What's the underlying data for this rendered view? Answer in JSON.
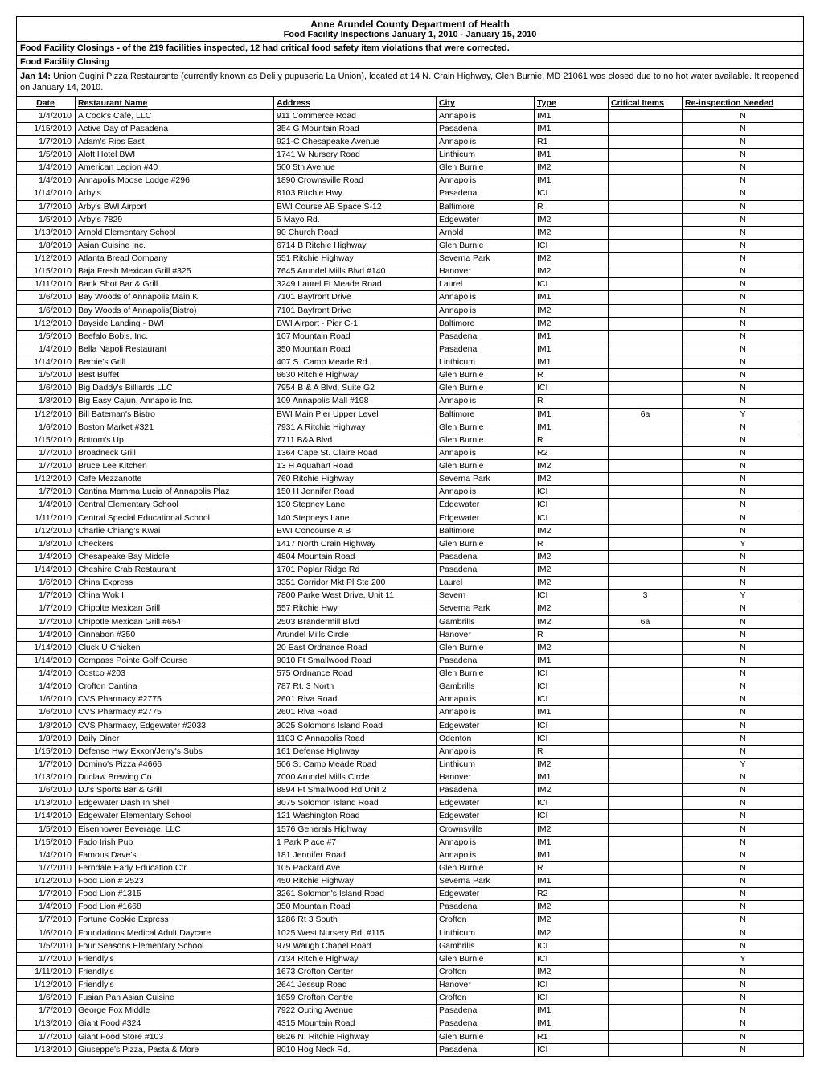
{
  "header": {
    "title": "Anne Arundel County Department of Health",
    "subtitle": "Food Facility Inspections January 1, 2010 - January 15, 2010"
  },
  "subheader": "Food Facility Closings - of the 219 facilities inspected, 12 had critical food safety item violations that were corrected.",
  "closing": {
    "title": "Food Facility Closing",
    "text_prefix": "Jan 14:",
    "text_body": " Union Cugini Pizza Restaurante (currently known as Deli y pupuseria La Union), located at 14 N. Crain Highway, Glen Burnie, MD 21061 was closed due to no hot water available.  It reopened on January 14, 2010."
  },
  "columns": [
    "Date",
    "Restaurant Name",
    "Address",
    "City",
    "Type",
    "Critical Items",
    "Re-inspection Needed"
  ],
  "rows": [
    [
      "1/4/2010",
      "A Cook's Cafe, LLC",
      "911 Commerce Road",
      "Annapolis",
      "IM1",
      "",
      "N"
    ],
    [
      "1/15/2010",
      "Active Day of Pasadena",
      "354 G Mountain Road",
      "Pasadena",
      "IM1",
      "",
      "N"
    ],
    [
      "1/7/2010",
      "Adam's Ribs East",
      "921-C Chesapeake Avenue",
      "Annapolis",
      "R1",
      "",
      "N"
    ],
    [
      "1/5/2010",
      "Aloft Hotel BWI",
      "1741 W Nursery Road",
      "Linthicum",
      "IM1",
      "",
      "N"
    ],
    [
      "1/4/2010",
      "American Legion #40",
      "500 5th Avenue",
      "Glen Burnie",
      "IM2",
      "",
      "N"
    ],
    [
      "1/4/2010",
      "Annapolis Moose Lodge #296",
      "1890 Crownsville Road",
      "Annapolis",
      "IM1",
      "",
      "N"
    ],
    [
      "1/14/2010",
      "Arby's",
      "8103 Ritchie Hwy.",
      "Pasadena",
      "ICI",
      "",
      "N"
    ],
    [
      "1/7/2010",
      "Arby's BWI Airport",
      "BWI  Course AB Space S-12",
      "Baltimore",
      "R",
      "",
      "N"
    ],
    [
      "1/5/2010",
      "Arby's 7829",
      "5 Mayo Rd.",
      "Edgewater",
      "IM2",
      "",
      "N"
    ],
    [
      "1/13/2010",
      "Arnold Elementary School",
      "90 Church Road",
      "Arnold",
      "IM2",
      "",
      "N"
    ],
    [
      "1/8/2010",
      "Asian Cuisine Inc.",
      "6714 B Ritchie Highway",
      "Glen Burnie",
      "ICI",
      "",
      "N"
    ],
    [
      "1/12/2010",
      "Atlanta Bread Company",
      "551 Ritchie Highway",
      "Severna Park",
      "IM2",
      "",
      "N"
    ],
    [
      "1/15/2010",
      "Baja Fresh Mexican Grill #325",
      "7645 Arundel Mills Blvd #140",
      "Hanover",
      "IM2",
      "",
      "N"
    ],
    [
      "1/11/2010",
      "Bank Shot Bar & Grill",
      "3249 Laurel Ft Meade Road",
      "Laurel",
      "ICI",
      "",
      "N"
    ],
    [
      "1/6/2010",
      "Bay Woods of Annapolis Main K",
      "7101 Bayfront Drive",
      "Annapolis",
      "IM1",
      "",
      "N"
    ],
    [
      "1/6/2010",
      "Bay Woods of Annapolis(Bistro)",
      "7101 Bayfront Drive",
      "Annapolis",
      "IM2",
      "",
      "N"
    ],
    [
      "1/12/2010",
      "Bayside Landing - BWI",
      "BWI Airport - Pier C-1",
      "Baltimore",
      "IM2",
      "",
      "N"
    ],
    [
      "1/5/2010",
      "Beefalo Bob's, Inc.",
      "107 Mountain Road",
      "Pasadena",
      "IM1",
      "",
      "N"
    ],
    [
      "1/4/2010",
      "Bella Napoli Restaurant",
      "350 Mountain Road",
      "Pasadena",
      "IM1",
      "",
      "N"
    ],
    [
      "1/14/2010",
      "Bernie's Grill",
      "407 S. Camp Meade Rd.",
      "Linthicum",
      "IM1",
      "",
      "N"
    ],
    [
      "1/5/2010",
      "Best Buffet",
      "6630 Ritchie Highway",
      "Glen Burnie",
      "R",
      "",
      "N"
    ],
    [
      "1/6/2010",
      "Big Daddy's Billiards LLC",
      "7954 B & A Blvd, Suite G2",
      "Glen Burnie",
      "ICI",
      "",
      "N"
    ],
    [
      "1/8/2010",
      "Big Easy Cajun, Annapolis Inc.",
      "109 Annapolis Mall #198",
      "Annapolis",
      "R",
      "",
      "N"
    ],
    [
      "1/12/2010",
      "Bill Bateman's Bistro",
      "BWI Main Pier Upper Level",
      "Baltimore",
      "IM1",
      "6a",
      "Y"
    ],
    [
      "1/6/2010",
      "Boston Market #321",
      "7931 A Ritchie Highway",
      "Glen Burnie",
      "IM1",
      "",
      "N"
    ],
    [
      "1/15/2010",
      "Bottom's Up",
      "7711 B&A Blvd.",
      "Glen Burnie",
      "R",
      "",
      "N"
    ],
    [
      "1/7/2010",
      "Broadneck Grill",
      "1364 Cape St. Claire Road",
      "Annapolis",
      "R2",
      "",
      "N"
    ],
    [
      "1/7/2010",
      "Bruce Lee Kitchen",
      "13 H Aquahart Road",
      "Glen Burnie",
      "IM2",
      "",
      "N"
    ],
    [
      "1/12/2010",
      "Cafe Mezzanotte",
      "760 Ritchie Highway",
      "Severna Park",
      "IM2",
      "",
      "N"
    ],
    [
      "1/7/2010",
      "Cantina Mamma Lucia of Annapolis Plaz",
      "150 H Jennifer Road",
      "Annapolis",
      "ICI",
      "",
      "N"
    ],
    [
      "1/4/2010",
      "Central Elementary School",
      "130 Stepney Lane",
      "Edgewater",
      "ICI",
      "",
      "N"
    ],
    [
      "1/11/2010",
      "Central Special Educational School",
      "140 Stepneys Lane",
      "Edgewater",
      "ICI",
      "",
      "N"
    ],
    [
      "1/12/2010",
      "Charlie Chiang's Kwai",
      "BWI Concourse A B",
      "Baltimore",
      "IM2",
      "",
      "N"
    ],
    [
      "1/8/2010",
      "Checkers",
      "1417 North Crain Highway",
      "Glen Burnie",
      "R",
      "",
      "Y"
    ],
    [
      "1/4/2010",
      "Chesapeake Bay Middle",
      "4804 Mountain Road",
      "Pasadena",
      "IM2",
      "",
      "N"
    ],
    [
      "1/14/2010",
      "Cheshire Crab Restaurant",
      "1701 Poplar Ridge Rd",
      "Pasadena",
      "IM2",
      "",
      "N"
    ],
    [
      "1/6/2010",
      "China Express",
      "3351 Corridor Mkt Pl Ste 200",
      "Laurel",
      "IM2",
      "",
      "N"
    ],
    [
      "1/7/2010",
      "China Wok II",
      "7800 Parke West Drive, Unit 11",
      "Severn",
      "ICI",
      "3",
      "Y"
    ],
    [
      "1/7/2010",
      "Chipolte Mexican Grill",
      "557 Ritchie Hwy",
      "Severna Park",
      "IM2",
      "",
      "N"
    ],
    [
      "1/7/2010",
      "Chipotle Mexican Grill #654",
      "2503 Brandermill Blvd",
      "Gambrills",
      "IM2",
      "6a",
      "N"
    ],
    [
      "1/4/2010",
      "Cinnabon #350",
      "Arundel Mills Circle",
      "Hanover",
      "R",
      "",
      "N"
    ],
    [
      "1/14/2010",
      "Cluck U Chicken",
      "20 East Ordnance Road",
      "Glen Burnie",
      "IM2",
      "",
      "N"
    ],
    [
      "1/14/2010",
      "Compass Pointe Golf Course",
      "9010 Ft Smallwood Road",
      "Pasadena",
      "IM1",
      "",
      "N"
    ],
    [
      "1/4/2010",
      "Costco #203",
      "575 Ordnance Road",
      "Glen Burnie",
      "ICI",
      "",
      "N"
    ],
    [
      "1/4/2010",
      "Crofton Cantina",
      "787 Rt. 3 North",
      "Gambrills",
      "ICI",
      "",
      "N"
    ],
    [
      "1/6/2010",
      "CVS Pharmacy #2775",
      "2601 Riva Road",
      "Annapolis",
      "ICI",
      "",
      "N"
    ],
    [
      "1/6/2010",
      "CVS Pharmacy #2775",
      "2601 Riva Road",
      "Annapolis",
      "IM1",
      "",
      "N"
    ],
    [
      "1/8/2010",
      "CVS Pharmacy, Edgewater #2033",
      "3025 Solomons Island Road",
      "Edgewater",
      "ICI",
      "",
      "N"
    ],
    [
      "1/8/2010",
      "Daily Diner",
      "1103 C Annapolis Road",
      "Odenton",
      "ICI",
      "",
      "N"
    ],
    [
      "1/15/2010",
      "Defense Hwy Exxon/Jerry's Subs",
      "161 Defense Highway",
      "Annapolis",
      "R",
      "",
      "N"
    ],
    [
      "1/7/2010",
      "Domino's Pizza #4666",
      "506 S. Camp Meade Road",
      "Linthicum",
      "IM2",
      "",
      "Y"
    ],
    [
      "1/13/2010",
      "Duclaw Brewing Co.",
      "7000 Arundel Mills Circle",
      "Hanover",
      "IM1",
      "",
      "N"
    ],
    [
      "1/6/2010",
      "DJ's Sports Bar & Grill",
      "8894 Ft Smallwood Rd Unit 2",
      "Pasadena",
      "IM2",
      "",
      "N"
    ],
    [
      "1/13/2010",
      "Edgewater Dash In Shell",
      "3075 Solomon Island Road",
      "Edgewater",
      "ICI",
      "",
      "N"
    ],
    [
      "1/14/2010",
      "Edgewater Elementary School",
      "121 Washington Road",
      "Edgewater",
      "ICI",
      "",
      "N"
    ],
    [
      "1/5/2010",
      "Eisenhower Beverage, LLC",
      "1576 Generals Highway",
      "Crownsville",
      "IM2",
      "",
      "N"
    ],
    [
      "1/15/2010",
      "Fado Irish Pub",
      "1 Park Place #7",
      "Annapolis",
      "IM1",
      "",
      "N"
    ],
    [
      "1/4/2010",
      "Famous Dave's",
      "181 Jennifer Road",
      "Annapolis",
      "IM1",
      "",
      "N"
    ],
    [
      "1/7/2010",
      "Ferndale Early Education Ctr",
      "105 Packard Ave",
      "Glen Burnie",
      "R",
      "",
      "N"
    ],
    [
      "1/12/2010",
      "Food Lion # 2523",
      "450 Ritchie Highway",
      "Severna Park",
      "IM1",
      "",
      "N"
    ],
    [
      "1/7/2010",
      "Food Lion #1315",
      "3261 Solomon's Island Road",
      "Edgewater",
      "R2",
      "",
      "N"
    ],
    [
      "1/4/2010",
      "Food Lion #1668",
      "350 Mountain Road",
      "Pasadena",
      "IM2",
      "",
      "N"
    ],
    [
      "1/7/2010",
      "Fortune Cookie Express",
      "1286 Rt 3 South",
      "Crofton",
      "IM2",
      "",
      "N"
    ],
    [
      "1/6/2010",
      "Foundations Medical Adult Daycare",
      "1025 West Nursery Rd. #115",
      "Linthicum",
      "IM2",
      "",
      "N"
    ],
    [
      "1/5/2010",
      "Four Seasons Elementary School",
      "979 Waugh Chapel Road",
      "Gambrills",
      "ICI",
      "",
      "N"
    ],
    [
      "1/7/2010",
      "Friendly's",
      "7134 Ritchie Highway",
      "Glen Burnie",
      "ICI",
      "",
      "Y"
    ],
    [
      "1/11/2010",
      "Friendly's",
      "1673 Crofton Center",
      "Crofton",
      "IM2",
      "",
      "N"
    ],
    [
      "1/12/2010",
      "Friendly's",
      "2641 Jessup Road",
      "Hanover",
      "ICI",
      "",
      "N"
    ],
    [
      "1/6/2010",
      "Fusian Pan Asian Cuisine",
      "1659 Crofton Centre",
      "Crofton",
      "ICI",
      "",
      "N"
    ],
    [
      "1/7/2010",
      "George Fox Middle",
      "7922 Outing Avenue",
      "Pasadena",
      "IM1",
      "",
      "N"
    ],
    [
      "1/13/2010",
      "Giant Food #324",
      "4315 Mountain Road",
      "Pasadena",
      "IM1",
      "",
      "N"
    ],
    [
      "1/7/2010",
      "Giant Food Store #103",
      "6626 N. Ritchie Highway",
      "Glen Burnie",
      "R1",
      "",
      "N"
    ],
    [
      "1/13/2010",
      "Giuseppe's Pizza, Pasta & More",
      "8010 Hog Neck Rd.",
      "Pasadena",
      "ICI",
      "",
      "N"
    ]
  ]
}
